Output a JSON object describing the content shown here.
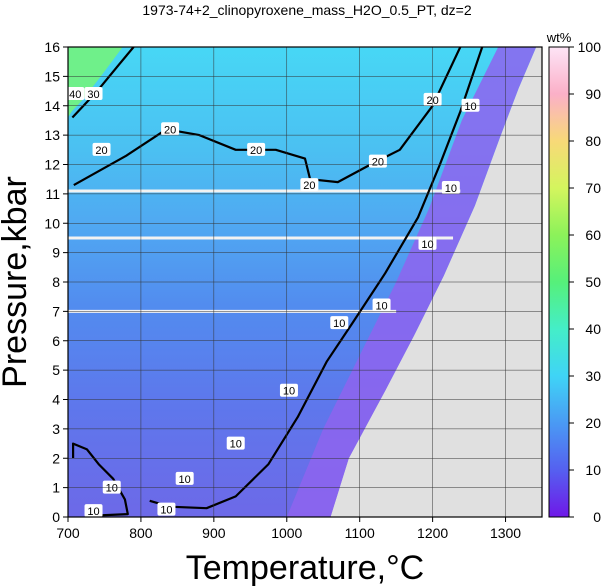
{
  "chart_data": {
    "type": "heatmap",
    "title": "1973-74+2_clinopyroxene_mass_H2O_0.5_PT, dz=2",
    "xlabel": "Temperature,°C",
    "ylabel": "Pressure,kbar",
    "xlim": [
      700,
      1350
    ],
    "ylim": [
      0,
      16
    ],
    "x_ticks": [
      700,
      800,
      900,
      1000,
      1100,
      1200,
      1300
    ],
    "y_ticks": [
      0,
      1,
      2,
      3,
      4,
      5,
      6,
      7,
      8,
      9,
      10,
      11,
      12,
      13,
      14,
      15,
      16
    ],
    "grid": true,
    "colorbar": {
      "label": "wt%",
      "range": [
        0,
        100
      ],
      "ticks": [
        0,
        10,
        20,
        30,
        40,
        50,
        60,
        70,
        80,
        90,
        100
      ]
    },
    "no_data_color": "#e0e0e0",
    "gap_pressures_kbar": [
      11.1,
      9.5,
      7.0
    ],
    "contours": [
      {
        "level": 10,
        "points": [
          [
            740,
            0.05
          ],
          [
            782,
            0.1
          ],
          [
            778,
            0.6
          ],
          [
            762,
            1.3
          ],
          [
            742,
            1.8
          ],
          [
            726,
            2.3
          ],
          [
            707,
            2.5
          ],
          [
            707,
            2.0
          ]
        ]
      },
      {
        "level": 10,
        "points": [
          [
            812,
            0.55
          ],
          [
            840,
            0.35
          ],
          [
            890,
            0.3
          ],
          [
            930,
            0.7
          ],
          [
            975,
            1.8
          ],
          [
            1015,
            3.4
          ],
          [
            1055,
            5.3
          ],
          [
            1090,
            6.6
          ],
          [
            1135,
            8.3
          ],
          [
            1180,
            10.2
          ],
          [
            1210,
            12.0
          ],
          [
            1238,
            13.8
          ],
          [
            1268,
            16.0
          ]
        ]
      },
      {
        "level": 20,
        "points": [
          [
            708,
            11.3
          ],
          [
            780,
            12.3
          ],
          [
            835,
            13.2
          ],
          [
            880,
            13.0
          ],
          [
            930,
            12.5
          ],
          [
            985,
            12.5
          ],
          [
            1025,
            12.2
          ],
          [
            1032,
            11.5
          ],
          [
            1070,
            11.4
          ],
          [
            1115,
            12.0
          ],
          [
            1155,
            12.5
          ],
          [
            1200,
            14.0
          ],
          [
            1238,
            16.0
          ]
        ]
      },
      {
        "level": 30,
        "points": [
          [
            706,
            13.6
          ],
          [
            740,
            14.5
          ],
          [
            770,
            15.4
          ],
          [
            790,
            16.0
          ]
        ]
      }
    ],
    "contour_labels": [
      {
        "text": "10",
        "x": 760,
        "y": 1.0
      },
      {
        "text": "10",
        "x": 735,
        "y": 0.2
      },
      {
        "text": "10",
        "x": 835,
        "y": 0.25
      },
      {
        "text": "10",
        "x": 860,
        "y": 1.3
      },
      {
        "text": "10",
        "x": 930,
        "y": 2.5
      },
      {
        "text": "10",
        "x": 1003,
        "y": 4.3
      },
      {
        "text": "10",
        "x": 1072,
        "y": 6.6
      },
      {
        "text": "10",
        "x": 1130,
        "y": 7.2
      },
      {
        "text": "10",
        "x": 1193,
        "y": 9.3
      },
      {
        "text": "10",
        "x": 1225,
        "y": 11.2
      },
      {
        "text": "10",
        "x": 1252,
        "y": 14.0
      },
      {
        "text": "20",
        "x": 746,
        "y": 12.5
      },
      {
        "text": "20",
        "x": 840,
        "y": 13.2
      },
      {
        "text": "20",
        "x": 958,
        "y": 12.5
      },
      {
        "text": "20",
        "x": 1031,
        "y": 11.3
      },
      {
        "text": "20",
        "x": 1125,
        "y": 12.1
      },
      {
        "text": "20",
        "x": 1200,
        "y": 14.2
      },
      {
        "text": "30",
        "x": 735,
        "y": 14.4
      },
      {
        "text": "40",
        "x": 710,
        "y": 14.4
      }
    ]
  }
}
